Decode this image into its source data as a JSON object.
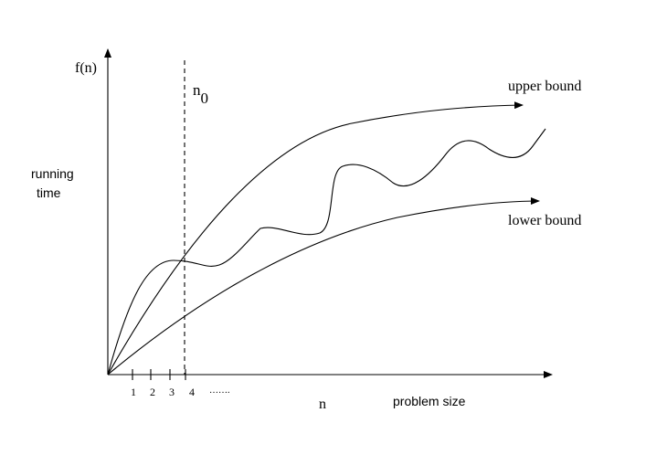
{
  "diagram": {
    "y_axis_label": "f(n)",
    "y_axis_description_line1": "running",
    "y_axis_description_line2": "time",
    "x_axis_label": "n",
    "x_axis_description": "problem size",
    "threshold_label": "n",
    "threshold_subscript": "0",
    "upper_curve_label": "upper bound",
    "lower_curve_label": "lower bound",
    "ticks": [
      "1",
      "2",
      "3",
      "4"
    ],
    "tick_ellipsis": "……."
  }
}
